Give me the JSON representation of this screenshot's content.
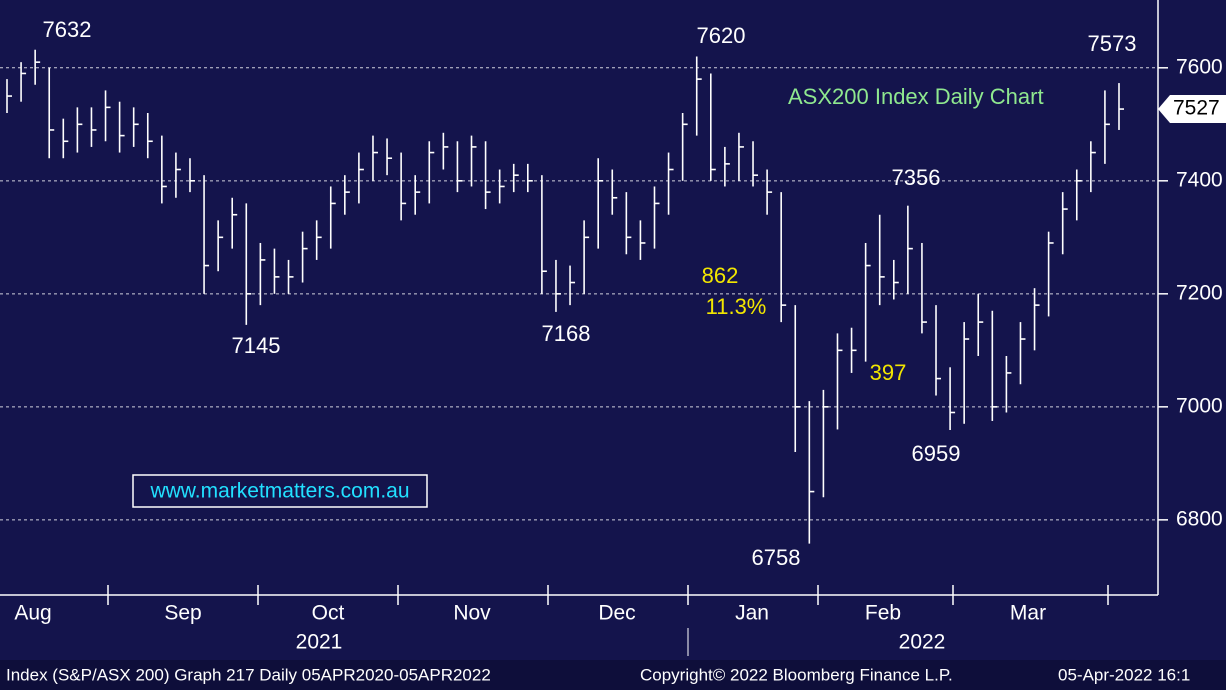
{
  "chart_data": {
    "type": "ohlc",
    "title": "ASX200 Index Daily Chart",
    "watermark": "www.marketmatters.com.au",
    "last_price": 7527,
    "annotations": [
      "7632",
      "7145",
      "7168",
      "7620",
      "6758",
      "7356",
      "6959",
      "7573",
      "862",
      "11.3%",
      "397"
    ],
    "months": [
      "Aug",
      "Sep",
      "Oct",
      "Nov",
      "Dec",
      "Jan",
      "Feb",
      "Mar"
    ],
    "years": [
      "2021",
      "2022"
    ],
    "footer_left": "Index (S&P/ASX 200) Graph 217  Daily 05APR2020-05APR2022",
    "footer_mid": "Copyright© 2022 Bloomberg Finance L.P.",
    "footer_right": "05-Apr-2022 16:1",
    "ylim": [
      6667,
      7720
    ],
    "yticks": [
      6800,
      7000,
      7200,
      7400,
      7600
    ],
    "grid": true,
    "color": "#ffffff",
    "high": [
      7580,
      7610,
      7632,
      7600,
      7510,
      7530,
      7530,
      7560,
      7540,
      7530,
      7520,
      7480,
      7450,
      7440,
      7410,
      7330,
      7370,
      7360,
      7290,
      7280,
      7260,
      7310,
      7330,
      7390,
      7410,
      7450,
      7480,
      7475,
      7450,
      7410,
      7470,
      7485,
      7470,
      7480,
      7470,
      7420,
      7430,
      7430,
      7410,
      7260,
      7250,
      7330,
      7440,
      7420,
      7380,
      7330,
      7390,
      7450,
      7520,
      7620,
      7590,
      7460,
      7485,
      7470,
      7420,
      7380,
      7180,
      7010,
      7030,
      7130,
      7140,
      7290,
      7340,
      7260,
      7356,
      7290,
      7180,
      7070,
      7150,
      7200,
      7170,
      7090,
      7150,
      7210,
      7310,
      7380,
      7420,
      7470,
      7560,
      7573
    ],
    "low": [
      7520,
      7540,
      7570,
      7440,
      7440,
      7450,
      7460,
      7470,
      7450,
      7460,
      7440,
      7360,
      7370,
      7380,
      7200,
      7240,
      7280,
      7145,
      7180,
      7200,
      7200,
      7220,
      7260,
      7280,
      7340,
      7360,
      7400,
      7410,
      7330,
      7340,
      7360,
      7420,
      7380,
      7390,
      7350,
      7360,
      7380,
      7380,
      7200,
      7168,
      7180,
      7200,
      7280,
      7340,
      7270,
      7260,
      7280,
      7340,
      7400,
      7480,
      7400,
      7390,
      7400,
      7390,
      7340,
      7150,
      6920,
      6758,
      6840,
      6960,
      7060,
      7080,
      7180,
      7190,
      7200,
      7130,
      7020,
      6959,
      6970,
      7090,
      6975,
      6990,
      7040,
      7100,
      7160,
      7270,
      7330,
      7380,
      7430,
      7490
    ],
    "close": [
      7550,
      7590,
      7610,
      7490,
      7470,
      7500,
      7490,
      7530,
      7480,
      7500,
      7470,
      7390,
      7420,
      7400,
      7250,
      7300,
      7340,
      7200,
      7260,
      7230,
      7230,
      7280,
      7300,
      7360,
      7380,
      7420,
      7450,
      7440,
      7360,
      7380,
      7450,
      7460,
      7400,
      7460,
      7380,
      7390,
      7410,
      7400,
      7240,
      7200,
      7220,
      7300,
      7400,
      7370,
      7300,
      7290,
      7360,
      7420,
      7500,
      7580,
      7420,
      7430,
      7460,
      7410,
      7380,
      7180,
      7000,
      6850,
      7000,
      7100,
      7100,
      7250,
      7230,
      7220,
      7280,
      7150,
      7050,
      6990,
      7120,
      7150,
      7000,
      7060,
      7120,
      7180,
      7290,
      7350,
      7400,
      7450,
      7500,
      7527
    ]
  }
}
